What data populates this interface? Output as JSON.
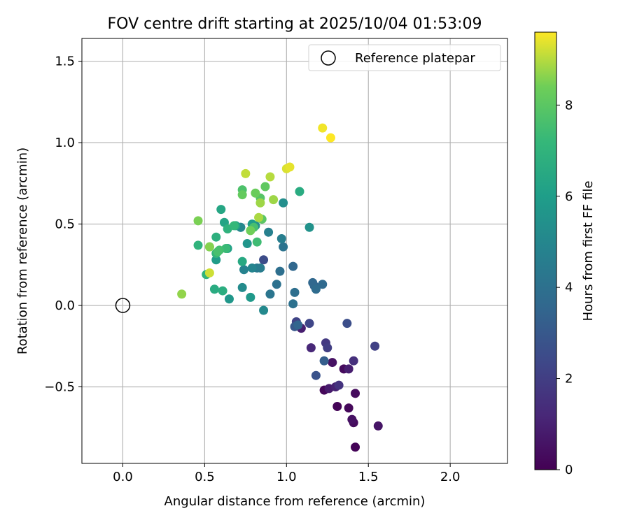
{
  "chart_data": {
    "type": "scatter",
    "title": "FOV centre drift starting at 2025/10/04 01:53:09",
    "xlabel": "Angular distance from reference (arcmin)",
    "ylabel": "Rotation from reference (arcmin)",
    "xlim": [
      -0.25,
      2.35
    ],
    "ylim": [
      -0.97,
      1.64
    ],
    "x_ticks": [
      0.0,
      0.5,
      1.0,
      1.5,
      2.0
    ],
    "x_tick_labels": [
      "0.0",
      "0.5",
      "1.0",
      "1.5",
      "2.0"
    ],
    "y_ticks": [
      -0.5,
      0.0,
      0.5,
      1.0,
      1.5
    ],
    "y_tick_labels": [
      "−0.5",
      "0.0",
      "0.5",
      "1.0",
      "1.5"
    ],
    "grid": true,
    "legend": {
      "position": "top-right",
      "entries": [
        "Reference platepar"
      ]
    },
    "reference_point": {
      "x": 0.0,
      "y": 0.0
    },
    "colorbar": {
      "label": "Hours from first FF file",
      "range": [
        0,
        9.6
      ],
      "ticks": [
        0,
        2,
        4,
        6,
        8
      ],
      "tick_labels": [
        "0",
        "2",
        "4",
        "6",
        "8"
      ],
      "colormap": "viridis"
    },
    "series": [
      {
        "name": "FOV centre",
        "x": [
          1.42,
          1.31,
          1.38,
          1.23,
          1.41,
          1.35,
          1.42,
          1.4,
          1.28,
          1.56,
          1.26,
          1.09,
          1.38,
          1.3,
          1.15,
          1.41,
          1.32,
          1.24,
          1.25,
          1.54,
          1.06,
          1.14,
          0.86,
          1.37,
          1.18,
          1.05,
          1.23,
          1.17,
          1.07,
          1.04,
          1.16,
          1.22,
          1.18,
          1.05,
          0.96,
          1.04,
          0.94,
          0.98,
          0.9,
          0.82,
          0.84,
          0.97,
          0.89,
          0.74,
          0.79,
          0.72,
          0.72,
          0.86,
          0.73,
          0.98,
          0.81,
          1.14,
          0.76,
          0.65,
          0.78,
          0.57,
          0.79,
          0.64,
          0.69,
          0.62,
          0.6,
          0.73,
          0.56,
          1.08,
          0.61,
          0.57,
          0.64,
          0.51,
          0.46,
          0.57,
          0.68,
          0.63,
          0.82,
          0.59,
          0.8,
          0.58,
          0.73,
          0.53,
          0.84,
          0.85,
          0.87,
          0.73,
          0.81,
          0.78,
          0.46,
          0.53,
          0.36,
          0.84,
          0.92,
          0.83,
          0.9,
          0.75,
          1.0,
          1.02,
          1.22,
          1.27,
          0.53
        ],
        "y": [
          -0.87,
          -0.62,
          -0.63,
          -0.52,
          -0.72,
          -0.39,
          -0.54,
          -0.7,
          -0.35,
          -0.74,
          -0.51,
          -0.14,
          -0.39,
          -0.5,
          -0.26,
          -0.34,
          -0.49,
          -0.23,
          -0.26,
          -0.25,
          -0.1,
          -0.11,
          0.28,
          -0.11,
          -0.43,
          -0.13,
          -0.34,
          0.12,
          -0.12,
          0.24,
          0.14,
          0.13,
          0.1,
          0.08,
          0.21,
          0.01,
          0.13,
          0.36,
          0.07,
          0.23,
          0.23,
          0.41,
          0.45,
          0.22,
          0.23,
          0.48,
          0.48,
          -0.03,
          0.11,
          0.63,
          0.49,
          0.48,
          0.38,
          0.04,
          0.05,
          0.28,
          0.5,
          0.35,
          0.49,
          0.51,
          0.59,
          0.27,
          0.1,
          0.7,
          0.09,
          0.42,
          0.47,
          0.19,
          0.37,
          0.32,
          0.49,
          0.35,
          0.39,
          0.34,
          0.48,
          0.33,
          0.71,
          0.36,
          0.66,
          0.53,
          0.73,
          0.68,
          0.69,
          0.46,
          0.52,
          0.36,
          0.07,
          0.63,
          0.65,
          0.54,
          0.79,
          0.81,
          0.84,
          0.85,
          1.09,
          1.03,
          0.2
        ],
        "hours": [
          0.1,
          0.1,
          0.2,
          0.2,
          0.3,
          0.3,
          0.3,
          0.5,
          0.5,
          0.6,
          0.8,
          0.9,
          0.9,
          1.0,
          1.2,
          1.5,
          1.6,
          1.8,
          2.0,
          2.1,
          2.2,
          2.3,
          2.5,
          2.6,
          2.8,
          3.0,
          3.2,
          3.4,
          3.5,
          3.6,
          3.6,
          3.7,
          3.8,
          3.9,
          3.9,
          4.0,
          4.0,
          4.1,
          4.2,
          4.4,
          4.5,
          4.6,
          4.7,
          4.8,
          4.9,
          4.9,
          5.0,
          5.1,
          5.2,
          5.3,
          5.4,
          5.5,
          5.6,
          5.7,
          5.8,
          5.9,
          6.0,
          6.1,
          6.2,
          6.3,
          6.4,
          6.5,
          6.6,
          6.6,
          6.7,
          6.8,
          6.9,
          7.0,
          7.0,
          7.1,
          7.2,
          7.3,
          7.4,
          7.5,
          7.6,
          7.6,
          7.7,
          7.8,
          7.9,
          8.0,
          8.1,
          8.2,
          8.3,
          8.4,
          8.5,
          8.6,
          8.7,
          8.8,
          8.8,
          8.9,
          9.0,
          9.1,
          9.3,
          9.4,
          9.5,
          9.6,
          9.2
        ]
      }
    ]
  }
}
